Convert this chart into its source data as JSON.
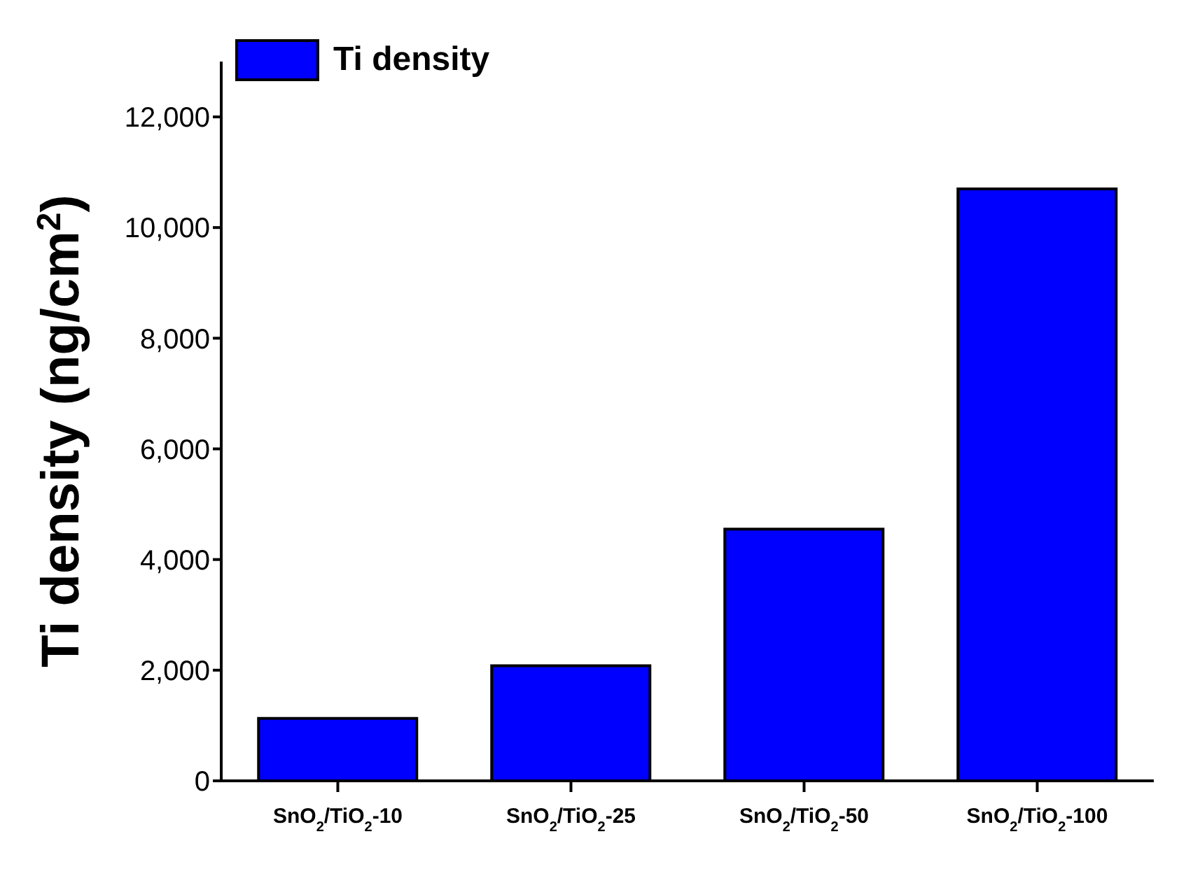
{
  "chart_data": {
    "type": "bar",
    "ylabel": "Ti density (ng/cm$^{2}$)",
    "categories": [
      "SnO$_{2}$/TiO$_{2}$-10",
      "SnO$_{2}$/TiO$_{2}$-25",
      "SnO$_{2}$/TiO$_{2}$-50",
      "SnO$_{2}$/TiO$_{2}$-100"
    ],
    "series": [
      {
        "name": "Ti density",
        "color": "#0000ff",
        "values": [
          1130,
          2080,
          4550,
          10700
        ]
      }
    ],
    "ylim": [
      0,
      13000
    ],
    "yticks": [
      0,
      {
        "value": 2000,
        "label": "2,000"
      },
      {
        "value": 4000,
        "label": "4,000"
      },
      {
        "value": 6000,
        "label": "6,000"
      },
      {
        "value": 8000,
        "label": "8,000"
      },
      {
        "value": 10000,
        "label": "10,000"
      },
      {
        "value": 12000,
        "label": "12,000"
      }
    ],
    "grid": false,
    "legend": "top left"
  }
}
